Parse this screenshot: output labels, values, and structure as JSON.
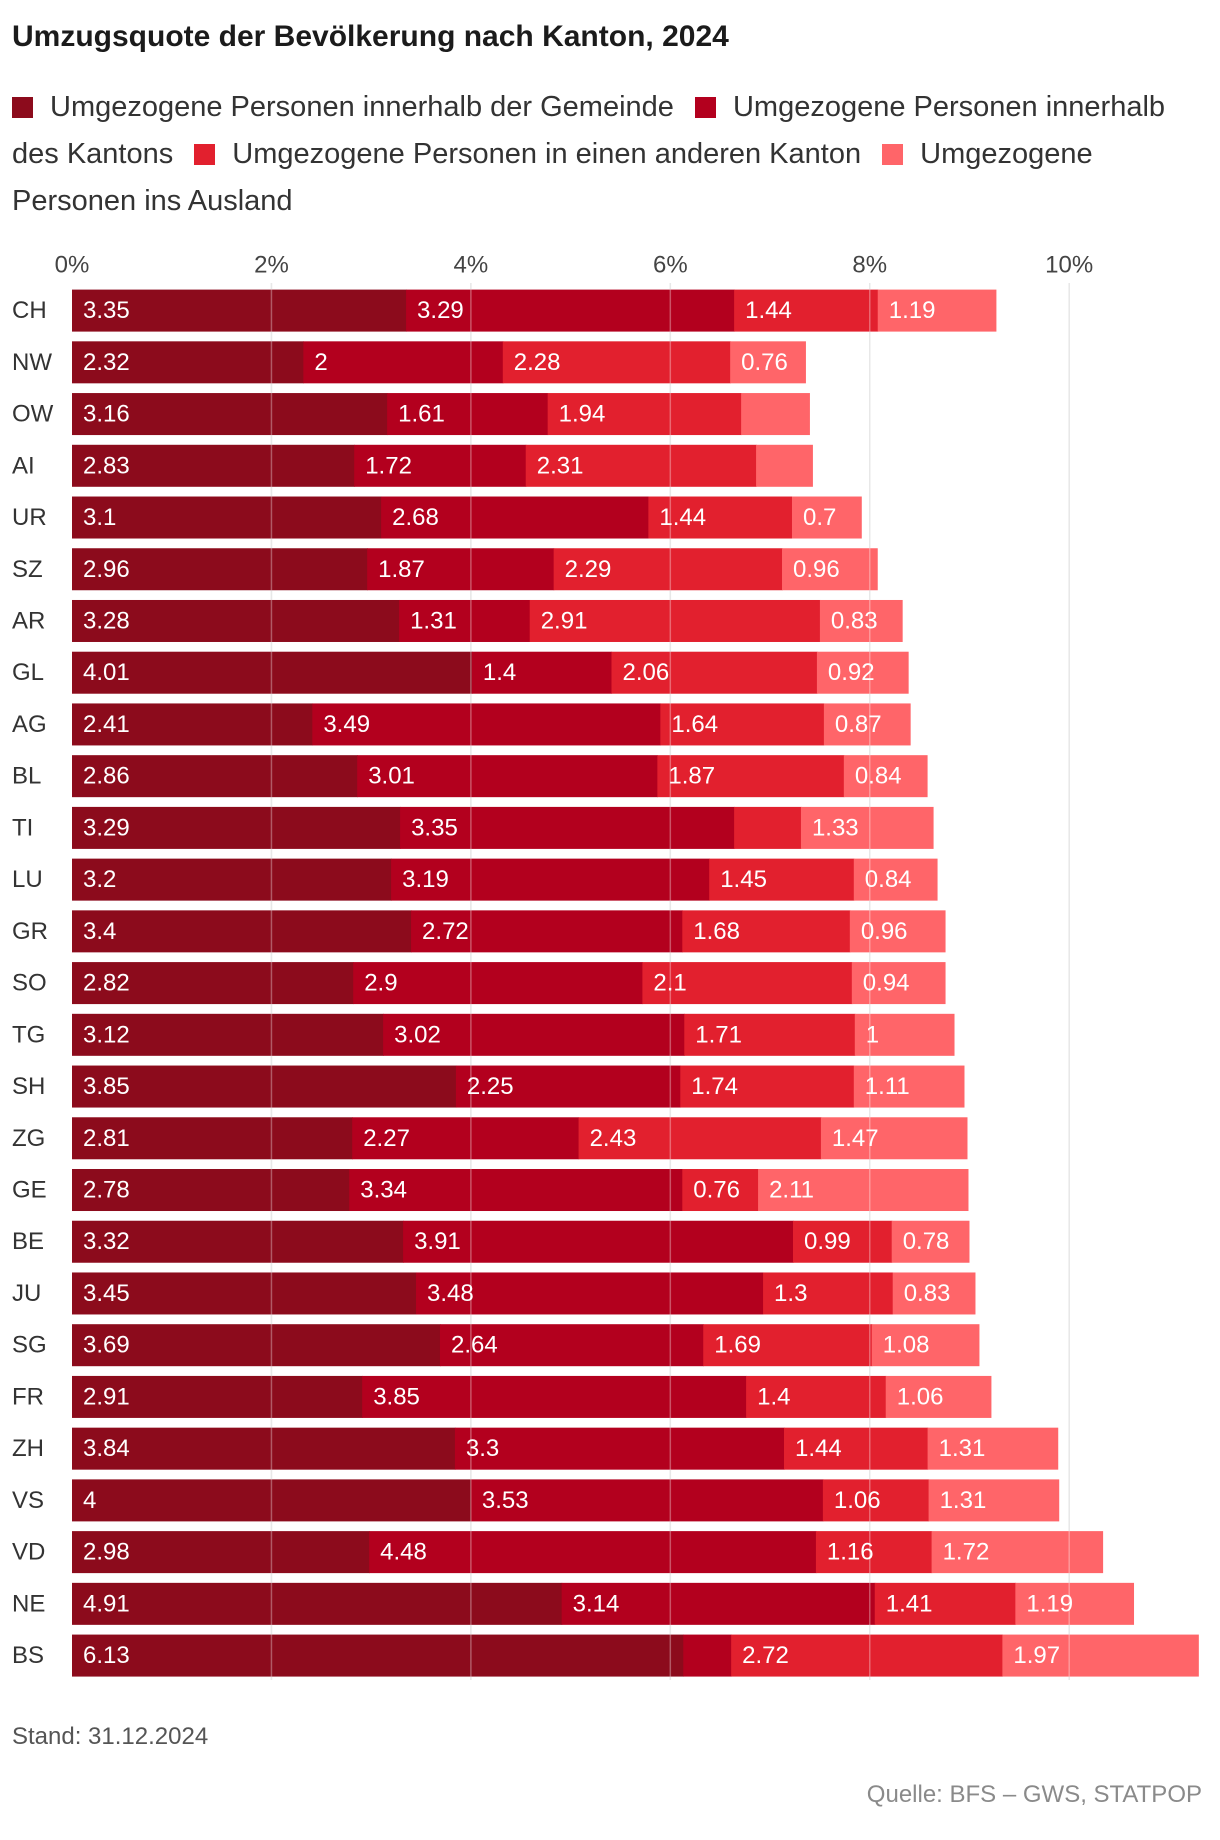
{
  "chart_data": {
    "type": "bar",
    "orientation": "horizontal",
    "stacked": true,
    "title": "Umzugsquote der Bevölkerung nach Kanton, 2024",
    "x_ticks": [
      0,
      2,
      4,
      6,
      8,
      10
    ],
    "x_tick_labels": [
      "0%",
      "2%",
      "4%",
      "6%",
      "8%",
      "10%"
    ],
    "xlim": [
      0,
      11.3
    ],
    "grid": true,
    "legend": "top",
    "categories": [
      "CH",
      "NW",
      "OW",
      "AI",
      "UR",
      "SZ",
      "AR",
      "GL",
      "AG",
      "BL",
      "TI",
      "LU",
      "GR",
      "SO",
      "TG",
      "SH",
      "ZG",
      "GE",
      "BE",
      "JU",
      "SG",
      "FR",
      "ZH",
      "VS",
      "VD",
      "NE",
      "BS"
    ],
    "series": [
      {
        "name": "Umgezogene Personen innerhalb der Gemeinde",
        "color": "#8c0b1c",
        "values": [
          3.35,
          2.32,
          3.16,
          2.83,
          3.1,
          2.96,
          3.28,
          4.01,
          2.41,
          2.86,
          3.29,
          3.2,
          3.4,
          2.82,
          3.12,
          3.85,
          2.81,
          2.78,
          3.32,
          3.45,
          3.69,
          2.91,
          3.84,
          4,
          2.98,
          4.91,
          6.13
        ]
      },
      {
        "name": "Umgezogene Personen innerhalb des Kantons",
        "color": "#b3001e",
        "values": [
          3.29,
          2,
          1.61,
          1.72,
          2.68,
          1.87,
          1.31,
          1.4,
          3.49,
          3.01,
          3.35,
          3.19,
          2.72,
          2.9,
          3.02,
          2.25,
          2.27,
          3.34,
          3.91,
          3.48,
          2.64,
          3.85,
          3.3,
          3.53,
          4.48,
          3.14,
          0.48
        ]
      },
      {
        "name": "Umgezogene Personen in einen anderen Kanton",
        "color": "#e2202e",
        "values": [
          1.44,
          2.28,
          1.94,
          2.31,
          1.44,
          2.29,
          2.91,
          2.06,
          1.64,
          1.87,
          0.67,
          1.45,
          1.68,
          2.1,
          1.71,
          1.74,
          2.43,
          0.76,
          0.99,
          1.3,
          1.69,
          1.4,
          1.44,
          1.06,
          1.16,
          1.41,
          2.72
        ]
      },
      {
        "name": "Umgezogene Personen ins Ausland",
        "color": "#ff6569",
        "values": [
          1.19,
          0.76,
          0.69,
          0.57,
          0.7,
          0.96,
          0.83,
          0.92,
          0.87,
          0.84,
          1.33,
          0.84,
          0.96,
          0.94,
          1,
          1.11,
          1.47,
          2.11,
          0.78,
          0.83,
          1.08,
          1.06,
          1.31,
          1.31,
          1.72,
          1.19,
          1.97
        ]
      }
    ],
    "note": "Stand: 31.12.2024",
    "source": "Quelle: BFS – GWS, STATPOP"
  }
}
